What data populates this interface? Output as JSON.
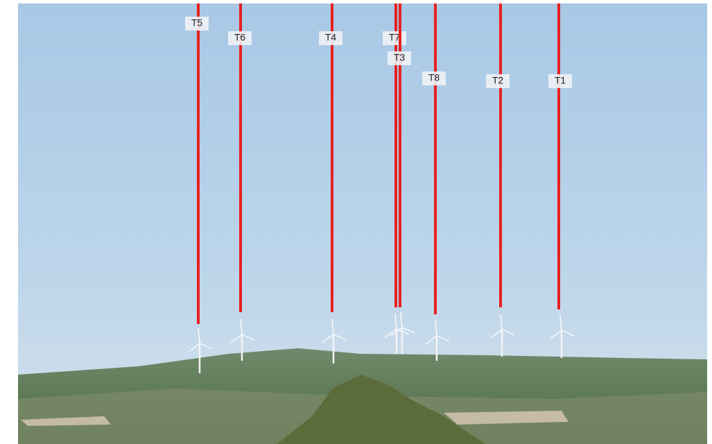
{
  "turbine_labels": [
    "T5",
    "T6",
    "T4",
    "T7",
    "T3",
    "T8",
    "T2",
    "T1"
  ]
}
